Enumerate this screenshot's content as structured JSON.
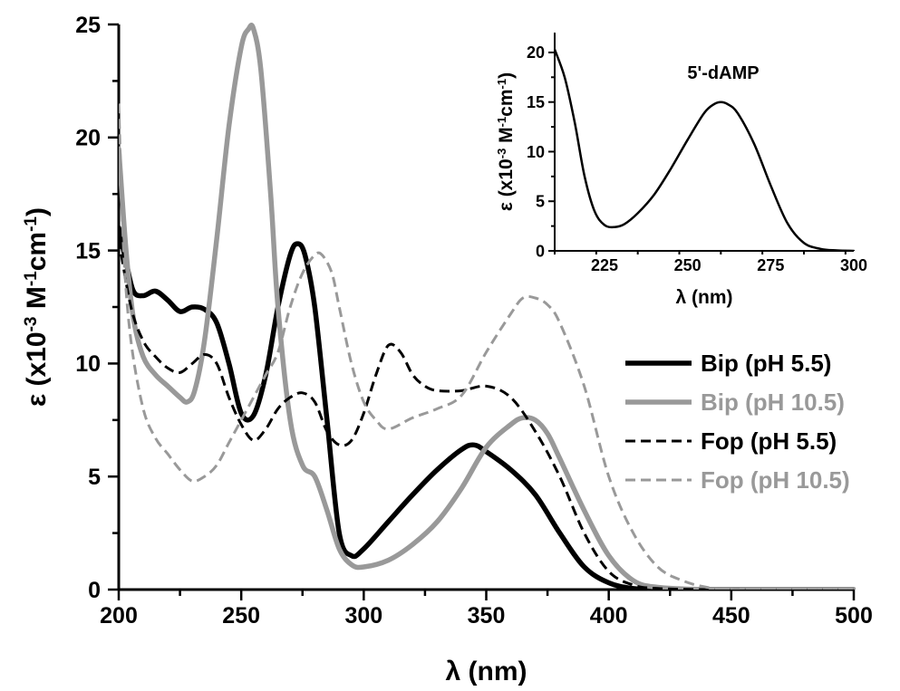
{
  "chart_data": [
    {
      "type": "line",
      "xlabel": "λ (nm)",
      "ylabel_parts": [
        "ε (x10",
        "-3",
        " M",
        "-1",
        "cm",
        "-1",
        ")"
      ],
      "xlim": [
        200,
        500
      ],
      "ylim": [
        0,
        25
      ],
      "xticks": [
        200,
        250,
        300,
        350,
        400,
        450,
        500
      ],
      "yticks": [
        0,
        5,
        10,
        15,
        20,
        25
      ],
      "grid": false,
      "legend_position": "right",
      "series": [
        {
          "name": "Bip (pH 5.5)",
          "color": "#000000",
          "dash": "solid",
          "x": [
            200,
            203,
            206,
            210,
            215,
            220,
            225,
            230,
            235,
            240,
            245,
            250,
            255,
            260,
            265,
            270,
            273,
            276,
            280,
            285,
            290,
            295,
            300,
            310,
            320,
            330,
            340,
            345,
            350,
            360,
            370,
            380,
            390,
            400,
            410,
            420,
            440,
            460,
            500
          ],
          "y": [
            16,
            14.5,
            13.2,
            13,
            13.2,
            12.8,
            12.3,
            12.5,
            12.4,
            11.8,
            10,
            7.8,
            7.7,
            9.5,
            12.5,
            14.8,
            15.3,
            14.8,
            12.5,
            7.5,
            2.5,
            1.5,
            1.8,
            3,
            4.2,
            5.3,
            6.2,
            6.4,
            6.1,
            5.3,
            4.2,
            2.5,
            1,
            0.3,
            0.05,
            0,
            0,
            0,
            0
          ]
        },
        {
          "name": "Bip (pH 10.5)",
          "color": "#999999",
          "dash": "solid",
          "x": [
            200,
            203,
            206,
            210,
            215,
            220,
            225,
            228,
            231,
            235,
            240,
            245,
            250,
            253,
            255,
            258,
            262,
            265,
            270,
            275,
            280,
            285,
            290,
            295,
            300,
            310,
            320,
            330,
            340,
            350,
            360,
            365,
            370,
            375,
            380,
            390,
            400,
            410,
            420,
            440,
            460,
            500
          ],
          "y": [
            19.5,
            15,
            12,
            10.3,
            9.5,
            9,
            8.5,
            8.3,
            8.8,
            11,
            15.5,
            20.5,
            24,
            24.8,
            24.8,
            23,
            17.5,
            12.5,
            7.5,
            5.5,
            5,
            3.5,
            1.8,
            1.1,
            1,
            1.3,
            2,
            3,
            4.5,
            6.3,
            7.3,
            7.6,
            7.5,
            6.9,
            5.8,
            3.5,
            1.5,
            0.4,
            0.1,
            0,
            0,
            0
          ]
        },
        {
          "name": "Fop (pH 5.5)",
          "color": "#000000",
          "dash": "dashed",
          "x": [
            200,
            205,
            210,
            215,
            220,
            225,
            230,
            235,
            240,
            245,
            250,
            255,
            260,
            265,
            270,
            275,
            280,
            285,
            290,
            295,
            300,
            305,
            310,
            315,
            320,
            325,
            330,
            340,
            350,
            360,
            370,
            380,
            390,
            400,
            410,
            420,
            440,
            460,
            500
          ],
          "y": [
            15.5,
            12.5,
            11,
            10.3,
            9.8,
            9.6,
            10,
            10.4,
            10,
            8.5,
            7.3,
            6.6,
            7.1,
            8,
            8.5,
            8.7,
            8.3,
            7,
            6.4,
            6.6,
            7.8,
            9.5,
            10.8,
            10.5,
            9.5,
            9,
            8.8,
            8.8,
            9,
            8.5,
            7,
            5,
            2.5,
            0.8,
            0.2,
            0.05,
            0,
            0,
            0
          ]
        },
        {
          "name": "Fop (pH 10.5)",
          "color": "#999999",
          "dash": "dashed",
          "x": [
            200,
            202,
            205,
            210,
            215,
            220,
            225,
            230,
            235,
            240,
            245,
            250,
            255,
            260,
            265,
            270,
            275,
            280,
            283,
            287,
            290,
            295,
            300,
            305,
            310,
            320,
            330,
            340,
            350,
            360,
            365,
            370,
            375,
            380,
            390,
            400,
            410,
            420,
            430,
            440,
            450,
            460,
            500
          ],
          "y": [
            21.5,
            15,
            11,
            8,
            6.7,
            6,
            5.3,
            4.8,
            5,
            5.5,
            6.5,
            7.5,
            8.5,
            9.5,
            10.5,
            12.5,
            14,
            14.8,
            14.8,
            14,
            12.5,
            10,
            8.3,
            7.5,
            7.1,
            7.6,
            8,
            8.6,
            10.5,
            12.2,
            12.9,
            12.9,
            12.6,
            11.8,
            9,
            5,
            2.5,
            1,
            0.4,
            0.1,
            0,
            0,
            0
          ]
        }
      ]
    },
    {
      "type": "line",
      "title": "5'-dAMP",
      "xlabel": "λ (nm)",
      "ylabel_parts": [
        "ε (x10",
        "-3",
        " M",
        "-1",
        "cm",
        "-1",
        ")"
      ],
      "xlim": [
        210,
        300
      ],
      "ylim": [
        0,
        22
      ],
      "xticks": [
        225,
        250,
        275,
        300
      ],
      "yticks": [
        0,
        5,
        10,
        15,
        20
      ],
      "grid": false,
      "series": [
        {
          "color": "#000000",
          "dash": "solid",
          "x": [
            210,
            213,
            216,
            219,
            222,
            225,
            228,
            231,
            235,
            240,
            245,
            250,
            255,
            258,
            260,
            262,
            265,
            270,
            275,
            280,
            285,
            290,
            295,
            300
          ],
          "y": [
            20.3,
            17.5,
            13,
            7.5,
            4,
            2.6,
            2.4,
            2.7,
            3.8,
            5.7,
            8.3,
            11.2,
            13.9,
            14.8,
            15,
            14.8,
            13.9,
            10.8,
            6.6,
            2.8,
            0.8,
            0.2,
            0.05,
            0
          ]
        }
      ]
    }
  ]
}
